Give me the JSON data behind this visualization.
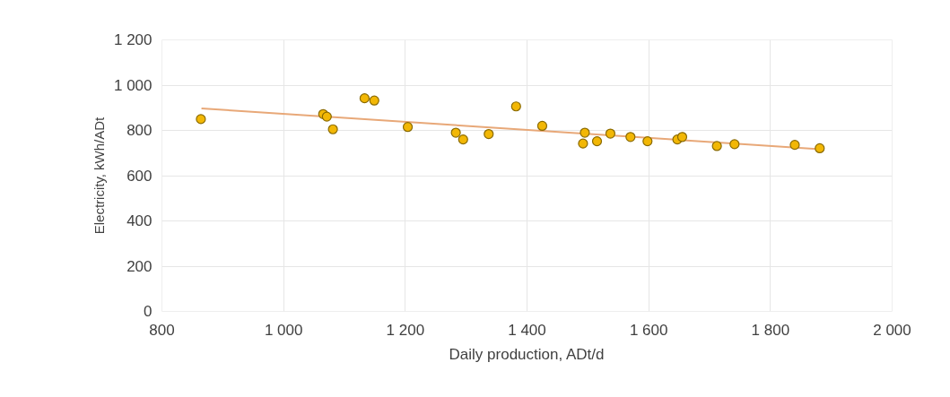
{
  "chart_data": {
    "type": "scatter",
    "xlabel": "Daily production, ADt/d",
    "ylabel": "Electricity, kWh/ADt",
    "xlim": [
      800,
      2000
    ],
    "xticks": [
      {
        "value": 800,
        "label": "800"
      },
      {
        "value": 1000,
        "label": "1 000"
      },
      {
        "value": 1200,
        "label": "1 200"
      },
      {
        "value": 1400,
        "label": "1 400"
      },
      {
        "value": 1600,
        "label": "1 600"
      },
      {
        "value": 1800,
        "label": "1 800"
      },
      {
        "value": 2000,
        "label": "2 000"
      }
    ],
    "ylim": [
      0,
      1200
    ],
    "yticks": [
      0,
      200,
      400,
      600,
      800,
      {
        "value": 1000,
        "label": "1 000"
      },
      {
        "value": 1200,
        "label": "1 200"
      }
    ],
    "grid": true,
    "marker": "circle",
    "series": [
      {
        "color": "#f2b705",
        "x": [
          864,
          1065,
          1071,
          1081,
          1133,
          1149,
          1204,
          1283,
          1295,
          1337,
          1382,
          1425,
          1495,
          1492,
          1515,
          1537,
          1570,
          1598,
          1647,
          1655,
          1712,
          1741,
          1840,
          1881
        ],
        "values": [
          850,
          872,
          861,
          805,
          942,
          932,
          815,
          790,
          760,
          784,
          906,
          820,
          790,
          742,
          752,
          786,
          771,
          752,
          760,
          771,
          731,
          739,
          736,
          721
        ]
      },
      {
        "type": "line",
        "marker": "none",
        "color": "#e8a878",
        "x": [
          865,
          1881
        ],
        "values": [
          897,
          717
        ]
      }
    ]
  }
}
